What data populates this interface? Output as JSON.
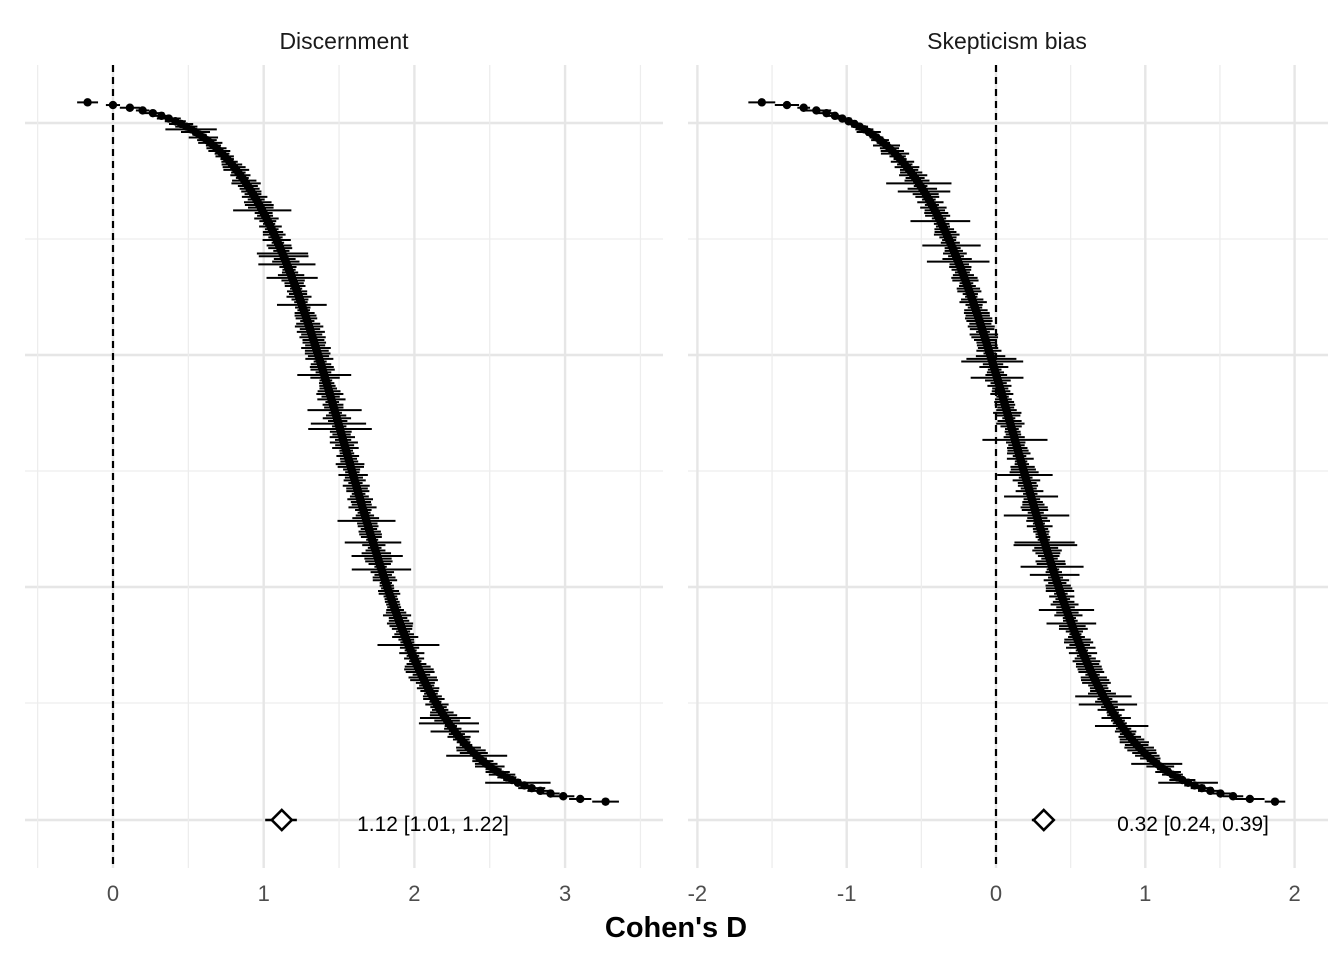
{
  "chart_data": {
    "type": "forest",
    "xlabel": "Cohen's D",
    "panels": [
      {
        "title": "Discernment",
        "xlim": [
          -0.5,
          3.5
        ],
        "xticks": [
          0,
          1,
          2,
          3
        ],
        "xtick_labels": [
          "0",
          "1",
          "2",
          "3"
        ],
        "reference_line": 0,
        "estimate_range": [
          -0.3,
          3.4
        ],
        "summary": {
          "estimate": 1.12,
          "ci_low": 1.01,
          "ci_high": 1.22,
          "label": "1.12 [1.01, 1.22]"
        }
      },
      {
        "title": "Skepticism bias",
        "xlim": [
          -2.0,
          2.1
        ],
        "xticks": [
          -2,
          -1,
          0,
          1,
          2
        ],
        "xtick_labels": [
          "-2",
          "-1",
          "0",
          "1",
          "2"
        ],
        "reference_line": 0,
        "estimate_range": [
          -1.7,
          2.0
        ],
        "summary": {
          "estimate": 0.32,
          "ci_low": 0.24,
          "ci_high": 0.39,
          "label": "0.32 [0.24, 0.39]"
        }
      }
    ],
    "grid": true
  }
}
